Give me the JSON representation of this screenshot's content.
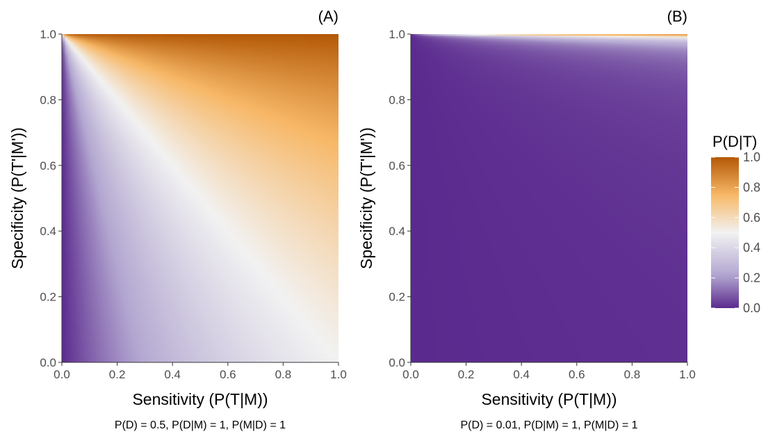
{
  "chart_data": [
    {
      "type": "heatmap",
      "panel_label": "(A)",
      "xlabel": "Sensitivity (P(T|M))",
      "ylabel": "Specificity (P(T'|M'))",
      "caption": "P(D) = 0.5, P(D|M) = 1, P(M|D) = 1",
      "prevalence": 0.5,
      "xlim": [
        0,
        1
      ],
      "ylim": [
        0,
        1
      ],
      "x_ticks": [
        "0.0",
        "0.2",
        "0.4",
        "0.6",
        "0.8",
        "1.0"
      ],
      "y_ticks": [
        "0.0",
        "0.2",
        "0.4",
        "0.6",
        "0.8",
        "1.0"
      ],
      "fill_variable": "P(D|T)"
    },
    {
      "type": "heatmap",
      "panel_label": "(B)",
      "xlabel": "Sensitivity (P(T|M))",
      "ylabel": "Specificity (P(T'|M'))",
      "caption": "P(D) = 0.01, P(D|M) = 1, P(M|D) = 1",
      "prevalence": 0.01,
      "xlim": [
        0,
        1
      ],
      "ylim": [
        0,
        1
      ],
      "x_ticks": [
        "0.0",
        "0.2",
        "0.4",
        "0.6",
        "0.8",
        "1.0"
      ],
      "y_ticks": [
        "0.0",
        "0.2",
        "0.4",
        "0.6",
        "0.8",
        "1.0"
      ],
      "fill_variable": "P(D|T)"
    }
  ],
  "legend": {
    "title": "P(D|T)",
    "ticks": [
      "1.0",
      "0.8",
      "0.6",
      "0.4",
      "0.2",
      "0.0"
    ],
    "colors": {
      "low": "#5b2a8e",
      "mid_low": "#b3a7d1",
      "mid": "#f2f2f2",
      "mid_high": "#f7b867",
      "high": "#b35806"
    }
  }
}
